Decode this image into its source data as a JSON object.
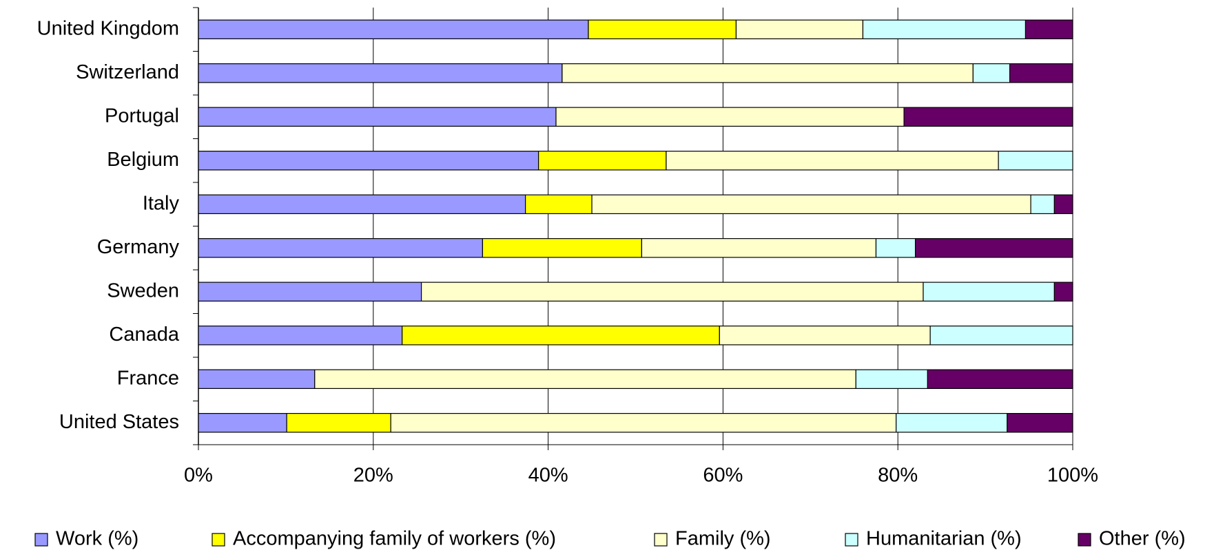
{
  "chart_data": {
    "type": "stacked_barh",
    "categories": [
      "United Kingdom",
      "Switzerland",
      "Portugal",
      "Belgium",
      "Italy",
      "Germany",
      "Sweden",
      "Canada",
      "France",
      "United States"
    ],
    "series": [
      {
        "name": "Work (%)",
        "color": "#9999ff",
        "values": [
          44.6,
          41.6,
          40.9,
          38.9,
          37.4,
          32.5,
          25.5,
          23.3,
          13.3,
          10.1
        ]
      },
      {
        "name": "Accompanying family of workers (%)",
        "color": "#ffff00",
        "values": [
          16.9,
          0,
          0,
          14.6,
          7.6,
          18.2,
          0,
          36.3,
          0,
          11.9
        ]
      },
      {
        "name": "Family (%)",
        "color": "#ffffcc",
        "values": [
          14.5,
          47.0,
          39.8,
          38.0,
          50.2,
          26.8,
          57.4,
          24.1,
          61.9,
          57.8
        ]
      },
      {
        "name": "Humanitarian (%)",
        "color": "#ccffff",
        "values": [
          18.6,
          4.2,
          0,
          8.5,
          2.7,
          4.5,
          15.0,
          16.3,
          8.2,
          12.7
        ]
      },
      {
        "name": "Other (%)",
        "color": "#660066",
        "values": [
          5.4,
          7.2,
          19.3,
          0,
          2.1,
          18.0,
          2.1,
          0,
          16.6,
          7.5
        ]
      }
    ],
    "xlim": [
      0,
      100
    ],
    "xticks": [
      {
        "value": 0,
        "label": "0%"
      },
      {
        "value": 20,
        "label": "20%"
      },
      {
        "value": 40,
        "label": "40%"
      },
      {
        "value": 60,
        "label": "60%"
      },
      {
        "value": 80,
        "label": "80%"
      },
      {
        "value": 100,
        "label": "100%"
      }
    ],
    "grid": true,
    "legend": "bottom"
  }
}
